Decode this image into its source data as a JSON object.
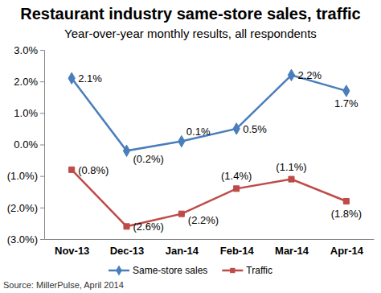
{
  "chart_data": {
    "type": "line",
    "title": "Restaurant industry same-store sales, traffic",
    "subtitle": "Year-over-year monthly results, all respondents",
    "source": "Source: MillerPulse, April 2014",
    "categories": [
      "Nov-13",
      "Dec-13",
      "Jan-14",
      "Feb-14",
      "Mar-14",
      "Apr-14"
    ],
    "series": [
      {
        "name": "Same-store sales",
        "color": "#4a7ebb",
        "marker": "diamond",
        "values": [
          2.1,
          -0.2,
          0.1,
          0.5,
          2.2,
          1.7
        ],
        "value_labels": [
          "2.1%",
          "(0.2%)",
          "0.1%",
          "0.5%",
          "2.2%",
          "1.7%"
        ]
      },
      {
        "name": "Traffic",
        "color": "#be4b48",
        "marker": "square",
        "values": [
          -0.8,
          -2.6,
          -2.2,
          -1.4,
          -1.1,
          -1.8
        ],
        "value_labels": [
          "(0.8%)",
          "(2.6%)",
          "(2.2%)",
          "(1.4%)",
          "(1.1%)",
          "(1.8%)"
        ]
      }
    ],
    "ylim": [
      -3,
      3
    ],
    "yticks": [
      {
        "value": 3,
        "label": "3.0%"
      },
      {
        "value": 2,
        "label": "2.0%"
      },
      {
        "value": 1,
        "label": "1.0%"
      },
      {
        "value": 0,
        "label": "0.0%"
      },
      {
        "value": -1,
        "label": "(1.0%)"
      },
      {
        "value": -2,
        "label": "(2.0%)"
      },
      {
        "value": -3,
        "label": "(3.0%)"
      }
    ],
    "grid": false,
    "legend": "bottom",
    "data_labels": true
  }
}
